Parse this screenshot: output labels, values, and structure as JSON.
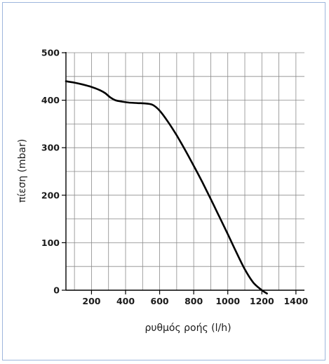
{
  "chart_data": {
    "type": "line",
    "title": "",
    "xlabel": "ρυθμός ροής (l/h)",
    "ylabel": "πίεση  (mbar)",
    "xlim": [
      50,
      1450
    ],
    "ylim": [
      0,
      500
    ],
    "x_ticks": [
      200,
      400,
      600,
      800,
      1000,
      1200,
      1400
    ],
    "y_ticks": [
      0,
      100,
      200,
      300,
      400,
      500
    ],
    "x_grid_step": 100,
    "y_grid_step": 50,
    "grid": true,
    "legend": "none",
    "series": [
      {
        "x": [
          50,
          100,
          150,
          200,
          250,
          280,
          310,
          340,
          380,
          420,
          470,
          520,
          560,
          600,
          650,
          700,
          750,
          800,
          850,
          900,
          950,
          1000,
          1050,
          1100,
          1150,
          1200,
          1230
        ],
        "y": [
          440,
          437,
          433,
          428,
          421,
          415,
          406,
          400,
          397,
          395,
          394,
          393,
          390,
          378,
          354,
          326,
          295,
          262,
          228,
          192,
          155,
          118,
          80,
          44,
          16,
          0,
          -7
        ],
        "color": "#000000"
      }
    ]
  }
}
